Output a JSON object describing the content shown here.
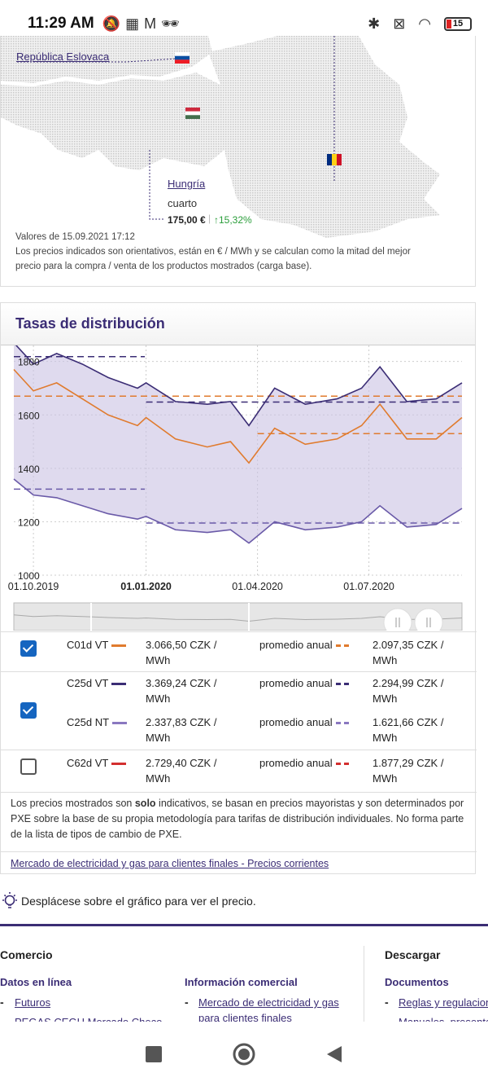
{
  "status_bar": {
    "time": "11:29 AM",
    "battery": "15",
    "icons": [
      "do-not-disturb-icon",
      "apps-icon",
      "gmail-icon",
      "incognito-icon",
      "bluetooth-icon",
      "no-sim-icon",
      "wifi-icon",
      "battery-icon"
    ]
  },
  "map": {
    "slovakia_link": "República Eslovaca",
    "hungary_link": "Hungría",
    "hungary_rank": "cuarto",
    "hungary_price": "175,00 €",
    "hungary_change": "15,32%",
    "values_date": "Valores de 15.09.2021 17:12",
    "note": "Los precios indicados son orientativos, están en € / MWh y se calculan como la mitad del mejor precio para la compra / venta de los productos mostrados (carga base).",
    "colors": {
      "accent": "#3b2d75",
      "positive": "#2a9d3a"
    }
  },
  "distribution": {
    "title": "Tasas de distribución",
    "rows": [
      {
        "checked": true,
        "items": [
          {
            "name": "C01d VT",
            "color": "#e07b2e",
            "price": "3.066,50 CZK / MWh",
            "avg_label": "promedio anual",
            "avg": "2.097,35 CZK / MWh"
          }
        ]
      },
      {
        "checked": true,
        "items": [
          {
            "name": "C25d VT",
            "color": "#3b2d75",
            "price": "3.369,24 CZK / MWh",
            "avg_label": "promedio anual",
            "avg": "2.294,99 CZK / MWh"
          },
          {
            "name": "C25d NT",
            "color": "#8a78c0",
            "price": "2.337,83 CZK / MWh",
            "avg_label": "promedio anual",
            "avg": "1.621,66 CZK / MWh"
          }
        ]
      },
      {
        "checked": false,
        "items": [
          {
            "name": "C62d VT",
            "color": "#d32f2f",
            "price": "2.729,40 CZK / MWh",
            "avg_label": "promedio anual",
            "avg": "1.877,29 CZK / MWh"
          }
        ]
      }
    ],
    "disclaimer_pre": "Los precios mostrados son ",
    "disclaimer_bold": "solo",
    "disclaimer_post": " indicativos, se basan en precios mayoristas y son determinados por PXE sobre la base de su propia metodología para tarifas de distribución individuales. No forma parte de la lista de tipos de cambio de PXE.",
    "market_link": "Mercado de electricidad y gas para clientes finales - Precios corrientes"
  },
  "chart_data": {
    "type": "line",
    "y_ticks": [
      1000,
      1200,
      1400,
      1600,
      1800
    ],
    "ylim": [
      1000,
      1860
    ],
    "x_tick_labels": [
      "01.10.2019",
      "01.01.2020",
      "01.04.2020",
      "01.07.2020"
    ],
    "x_tick_bold": "01.01.2020",
    "x_range": [
      "2019-09-15",
      "2020-09-15"
    ],
    "series": [
      {
        "color": "#3b2d75",
        "x": [
          "2019-09-15",
          "2019-10-01",
          "2019-10-20",
          "2019-11-10",
          "2019-12-01",
          "2019-12-25",
          "2020-01-01",
          "2020-01-25",
          "2020-02-20",
          "2020-03-10",
          "2020-03-25",
          "2020-04-15",
          "2020-05-10",
          "2020-06-05",
          "2020-06-25",
          "2020-07-10",
          "2020-08-01",
          "2020-08-25",
          "2020-09-15"
        ],
        "y": [
          1870,
          1790,
          1830,
          1790,
          1740,
          1700,
          1720,
          1650,
          1640,
          1650,
          1560,
          1700,
          1640,
          1660,
          1700,
          1780,
          1650,
          1660,
          1720
        ]
      },
      {
        "color": "#e07b2e",
        "x": [
          "2019-09-15",
          "2019-10-01",
          "2019-10-20",
          "2019-11-10",
          "2019-12-01",
          "2019-12-25",
          "2020-01-01",
          "2020-01-25",
          "2020-02-20",
          "2020-03-10",
          "2020-03-25",
          "2020-04-15",
          "2020-05-10",
          "2020-06-05",
          "2020-06-25",
          "2020-07-10",
          "2020-08-01",
          "2020-08-25",
          "2020-09-15"
        ],
        "y": [
          1770,
          1690,
          1720,
          1660,
          1600,
          1560,
          1590,
          1510,
          1480,
          1500,
          1420,
          1550,
          1490,
          1510,
          1560,
          1640,
          1510,
          1510,
          1590
        ]
      },
      {
        "color": "#6a5aa8",
        "x": [
          "2019-09-15",
          "2019-10-01",
          "2019-10-20",
          "2019-11-10",
          "2019-12-01",
          "2019-12-25",
          "2020-01-01",
          "2020-01-25",
          "2020-02-20",
          "2020-03-10",
          "2020-03-25",
          "2020-04-15",
          "2020-05-10",
          "2020-06-05",
          "2020-06-25",
          "2020-07-10",
          "2020-08-01",
          "2020-08-25",
          "2020-09-15"
        ],
        "y": [
          1360,
          1300,
          1290,
          1260,
          1230,
          1210,
          1220,
          1170,
          1160,
          1170,
          1120,
          1200,
          1170,
          1180,
          1200,
          1260,
          1180,
          1190,
          1250
        ]
      }
    ],
    "averages": [
      {
        "color": "#3b2d75",
        "periods": [
          {
            "from": "2019-09-15",
            "to": "2019-12-31",
            "y": 1818
          },
          {
            "from": "2020-01-01",
            "to": "2020-09-15",
            "y": 1648
          }
        ]
      },
      {
        "color": "#e07b2e",
        "periods": [
          {
            "from": "2019-09-15",
            "to": "2020-09-15",
            "y": 1670
          },
          {
            "from": "2020-04-01",
            "to": "2020-09-15",
            "y": 1530
          }
        ]
      },
      {
        "color": "#6a5aa8",
        "periods": [
          {
            "from": "2019-09-15",
            "to": "2019-12-31",
            "y": 1322
          },
          {
            "from": "2020-01-01",
            "to": "2020-09-15",
            "y": 1195
          }
        ]
      }
    ]
  },
  "hint": "Desplácese sobre el gráfico para ver el precio.",
  "footer": {
    "col1_head": "Comercio",
    "col1_sub": "Datos en línea",
    "col1_link1": "Futuros",
    "col1_link2": "PEGAS CEGH Mercado Checo",
    "col2_sub": "Información comercial",
    "col2_link1": "Mercado de electricidad y gas para clientes finales",
    "col3_head": "Descargar",
    "col3_sub": "Documentos",
    "col3_link1": "Reglas y regulaciones",
    "col3_link2": "Manuales, presentaciones"
  }
}
